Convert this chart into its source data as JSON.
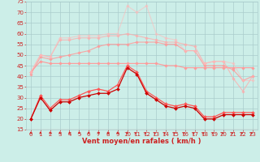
{
  "x": [
    0,
    1,
    2,
    3,
    4,
    5,
    6,
    7,
    8,
    9,
    10,
    11,
    12,
    13,
    14,
    15,
    16,
    17,
    18,
    19,
    20,
    21,
    22,
    23
  ],
  "series": [
    {
      "color": "#ff5555",
      "alpha": 1.0,
      "linewidth": 0.9,
      "markersize": 2.0,
      "values": [
        20,
        31,
        25,
        29,
        29,
        31,
        33,
        34,
        33,
        36,
        45,
        42,
        33,
        30,
        27,
        26,
        27,
        26,
        21,
        21,
        23,
        23,
        23,
        23
      ]
    },
    {
      "color": "#cc0000",
      "alpha": 1.0,
      "linewidth": 0.9,
      "markersize": 2.0,
      "values": [
        20,
        30,
        24,
        28,
        28,
        30,
        31,
        32,
        32,
        34,
        44,
        41,
        32,
        29,
        26,
        25,
        26,
        25,
        20,
        20,
        22,
        22,
        22,
        22
      ]
    },
    {
      "color": "#ff9999",
      "alpha": 1.0,
      "linewidth": 0.8,
      "markersize": 1.8,
      "values": [
        42,
        47,
        46,
        46,
        46,
        46,
        46,
        46,
        46,
        46,
        46,
        46,
        46,
        46,
        45,
        45,
        44,
        44,
        44,
        44,
        44,
        44,
        44,
        44
      ]
    },
    {
      "color": "#ff9999",
      "alpha": 0.85,
      "linewidth": 0.8,
      "markersize": 1.8,
      "values": [
        41,
        49,
        48,
        49,
        50,
        51,
        52,
        54,
        55,
        55,
        55,
        56,
        56,
        56,
        55,
        55,
        52,
        52,
        45,
        45,
        45,
        43,
        38,
        40
      ]
    },
    {
      "color": "#ffaaaa",
      "alpha": 0.75,
      "linewidth": 0.8,
      "markersize": 1.8,
      "values": [
        42,
        50,
        49,
        57,
        57,
        58,
        58,
        58,
        59,
        59,
        60,
        59,
        58,
        57,
        56,
        56,
        55,
        54,
        46,
        47,
        47,
        39,
        33,
        40
      ]
    },
    {
      "color": "#ffbbbb",
      "alpha": 0.6,
      "linewidth": 0.8,
      "markersize": 1.8,
      "values": [
        42,
        50,
        49,
        58,
        58,
        59,
        59,
        59,
        60,
        60,
        73,
        70,
        73,
        60,
        58,
        57,
        52,
        52,
        46,
        47,
        47,
        46,
        38,
        38
      ]
    }
  ],
  "xlabel": "Vent moyen/en rafales ( km/h )",
  "xlim": [
    -0.5,
    23.5
  ],
  "ylim": [
    15,
    75
  ],
  "yticks": [
    15,
    20,
    25,
    30,
    35,
    40,
    45,
    50,
    55,
    60,
    65,
    70,
    75
  ],
  "xticks": [
    0,
    1,
    2,
    3,
    4,
    5,
    6,
    7,
    8,
    9,
    10,
    11,
    12,
    13,
    14,
    15,
    16,
    17,
    18,
    19,
    20,
    21,
    22,
    23
  ],
  "grid_color": "#aacccc",
  "bg_color": "#cceee8",
  "tick_color": "#cc2222",
  "label_fontsize": 6.0,
  "tick_fontsize": 5.0
}
